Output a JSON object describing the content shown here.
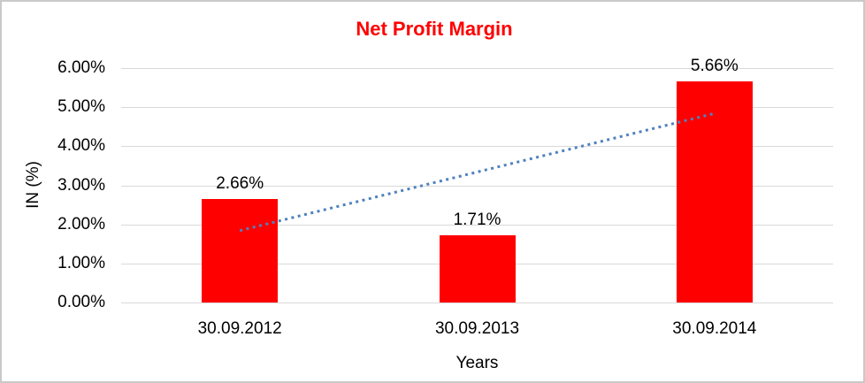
{
  "chart_data": {
    "type": "bar",
    "title": "Net Profit Margin",
    "categories": [
      "30.09.2012",
      "30.09.2013",
      "30.09.2014"
    ],
    "values": [
      2.66,
      1.71,
      5.66
    ],
    "data_labels": [
      "2.66%",
      "1.71%",
      "5.66%"
    ],
    "xlabel": "Years",
    "ylabel": "IN (%)",
    "ylim": [
      0,
      6
    ],
    "ytick_step": 1,
    "ytick_labels": [
      "0.00%",
      "1.00%",
      "2.00%",
      "3.00%",
      "4.00%",
      "5.00%",
      "6.00%"
    ],
    "grid": true,
    "legend": "none",
    "colors": {
      "bar": "#ff0000",
      "title": "#ff0000",
      "trendline": "#4f81bd",
      "gridline": "#d9d9d9",
      "axis_text": "#000000",
      "frame_border": "#c9c9c9",
      "background": "#ffffff"
    },
    "trendline": {
      "type": "linear",
      "style": "dotted",
      "start_value": 1.84,
      "end_value": 4.84
    }
  }
}
